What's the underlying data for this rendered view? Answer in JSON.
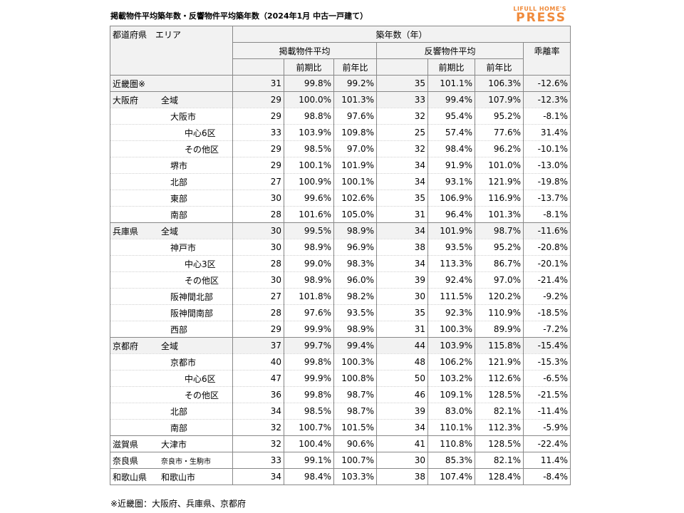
{
  "title": "掲載物件平均築年数・反響物件平均築年数（2024年1月 中古一戸建て）",
  "logo": {
    "line1": "LIFULL HOME'S",
    "line2": "PRESS"
  },
  "header": {
    "area_label": "都道府県　エリア",
    "years_label": "築年数（年）",
    "listing_label": "掲載物件平均",
    "response_label": "反響物件平均",
    "gap_label": "乖離率",
    "prev_period": "前期比",
    "prev_year": "前年比",
    "prev_period2": "前期比",
    "prev_year2": "前年比"
  },
  "rows": [
    {
      "pref": "近畿圏※",
      "area": "",
      "lv": 0,
      "grp": true,
      "shade": true,
      "l": "31",
      "lp": "99.8%",
      "ly": "99.2%",
      "r": "35",
      "rp": "101.1%",
      "ry": "106.3%",
      "gap": "-12.6%"
    },
    {
      "pref": "大阪府",
      "area": "全域",
      "lv": 0,
      "grp": true,
      "shade": true,
      "l": "29",
      "lp": "100.0%",
      "ly": "101.3%",
      "r": "33",
      "rp": "99.4%",
      "ry": "107.9%",
      "gap": "-12.3%"
    },
    {
      "pref": "",
      "area": "大阪市",
      "lv": 1,
      "l": "29",
      "lp": "98.8%",
      "ly": "97.6%",
      "r": "32",
      "rp": "95.4%",
      "ry": "95.2%",
      "gap": "-8.1%"
    },
    {
      "pref": "",
      "area": "中心6区",
      "lv": 2,
      "l": "33",
      "lp": "103.9%",
      "ly": "109.8%",
      "r": "25",
      "rp": "57.4%",
      "ry": "77.6%",
      "gap": "31.4%"
    },
    {
      "pref": "",
      "area": "その他区",
      "lv": 2,
      "l": "29",
      "lp": "98.5%",
      "ly": "97.0%",
      "r": "32",
      "rp": "98.4%",
      "ry": "96.2%",
      "gap": "-10.1%"
    },
    {
      "pref": "",
      "area": "堺市",
      "lv": 1,
      "l": "29",
      "lp": "100.1%",
      "ly": "101.9%",
      "r": "34",
      "rp": "91.9%",
      "ry": "101.0%",
      "gap": "-13.0%"
    },
    {
      "pref": "",
      "area": "北部",
      "lv": 1,
      "l": "27",
      "lp": "100.9%",
      "ly": "100.1%",
      "r": "34",
      "rp": "93.1%",
      "ry": "121.9%",
      "gap": "-19.8%"
    },
    {
      "pref": "",
      "area": "東部",
      "lv": 1,
      "l": "30",
      "lp": "99.6%",
      "ly": "102.6%",
      "r": "35",
      "rp": "106.9%",
      "ry": "116.9%",
      "gap": "-13.7%"
    },
    {
      "pref": "",
      "area": "南部",
      "lv": 1,
      "l": "28",
      "lp": "101.6%",
      "ly": "105.0%",
      "r": "31",
      "rp": "96.4%",
      "ry": "101.3%",
      "gap": "-8.1%"
    },
    {
      "pref": "兵庫県",
      "area": "全域",
      "lv": 0,
      "grp": true,
      "shade": true,
      "l": "30",
      "lp": "99.5%",
      "ly": "98.9%",
      "r": "34",
      "rp": "101.9%",
      "ry": "98.7%",
      "gap": "-11.6%"
    },
    {
      "pref": "",
      "area": "神戸市",
      "lv": 1,
      "l": "30",
      "lp": "98.9%",
      "ly": "96.9%",
      "r": "38",
      "rp": "93.5%",
      "ry": "95.2%",
      "gap": "-20.8%"
    },
    {
      "pref": "",
      "area": "中心3区",
      "lv": 2,
      "l": "28",
      "lp": "99.0%",
      "ly": "98.3%",
      "r": "34",
      "rp": "113.3%",
      "ry": "86.7%",
      "gap": "-20.1%"
    },
    {
      "pref": "",
      "area": "その他区",
      "lv": 2,
      "l": "30",
      "lp": "98.9%",
      "ly": "96.0%",
      "r": "39",
      "rp": "92.4%",
      "ry": "97.0%",
      "gap": "-21.4%"
    },
    {
      "pref": "",
      "area": "阪神間北部",
      "lv": 1,
      "l": "27",
      "lp": "101.8%",
      "ly": "98.2%",
      "r": "30",
      "rp": "111.5%",
      "ry": "120.2%",
      "gap": "-9.2%"
    },
    {
      "pref": "",
      "area": "阪神間南部",
      "lv": 1,
      "l": "28",
      "lp": "97.6%",
      "ly": "93.5%",
      "r": "35",
      "rp": "92.3%",
      "ry": "110.9%",
      "gap": "-18.5%"
    },
    {
      "pref": "",
      "area": "西部",
      "lv": 1,
      "l": "29",
      "lp": "99.9%",
      "ly": "98.9%",
      "r": "31",
      "rp": "100.3%",
      "ry": "89.9%",
      "gap": "-7.2%"
    },
    {
      "pref": "京都府",
      "area": "全域",
      "lv": 0,
      "grp": true,
      "shade": true,
      "l": "37",
      "lp": "99.7%",
      "ly": "99.4%",
      "r": "44",
      "rp": "103.9%",
      "ry": "115.8%",
      "gap": "-15.4%"
    },
    {
      "pref": "",
      "area": "京都市",
      "lv": 1,
      "l": "40",
      "lp": "99.8%",
      "ly": "100.3%",
      "r": "48",
      "rp": "106.2%",
      "ry": "121.9%",
      "gap": "-15.3%"
    },
    {
      "pref": "",
      "area": "中心6区",
      "lv": 2,
      "l": "47",
      "lp": "99.9%",
      "ly": "100.8%",
      "r": "50",
      "rp": "103.2%",
      "ry": "112.6%",
      "gap": "-6.5%"
    },
    {
      "pref": "",
      "area": "その他区",
      "lv": 2,
      "l": "36",
      "lp": "99.8%",
      "ly": "98.7%",
      "r": "46",
      "rp": "109.1%",
      "ry": "128.5%",
      "gap": "-21.5%"
    },
    {
      "pref": "",
      "area": "北部",
      "lv": 1,
      "l": "34",
      "lp": "98.5%",
      "ly": "98.7%",
      "r": "39",
      "rp": "83.0%",
      "ry": "82.1%",
      "gap": "-11.4%"
    },
    {
      "pref": "",
      "area": "南部",
      "lv": 1,
      "l": "32",
      "lp": "100.7%",
      "ly": "101.5%",
      "r": "34",
      "rp": "110.1%",
      "ry": "112.3%",
      "gap": "-5.9%"
    },
    {
      "pref": "滋賀県",
      "area": "大津市",
      "lv": 0,
      "grp": true,
      "l": "32",
      "lp": "100.4%",
      "ly": "90.6%",
      "r": "41",
      "rp": "110.8%",
      "ry": "128.5%",
      "gap": "-22.4%"
    },
    {
      "pref": "奈良県",
      "area": "奈良市・生駒市",
      "lv": 0,
      "grp": true,
      "small": true,
      "l": "33",
      "lp": "99.1%",
      "ly": "100.7%",
      "r": "30",
      "rp": "85.3%",
      "ry": "82.1%",
      "gap": "11.4%"
    },
    {
      "pref": "和歌山県",
      "area": "和歌山市",
      "lv": 0,
      "grp": true,
      "l": "34",
      "lp": "98.4%",
      "ly": "103.3%",
      "r": "38",
      "rp": "107.4%",
      "ry": "128.4%",
      "gap": "-8.4%"
    }
  ],
  "note": "※近畿圏：大阪府、兵庫県、京都府"
}
